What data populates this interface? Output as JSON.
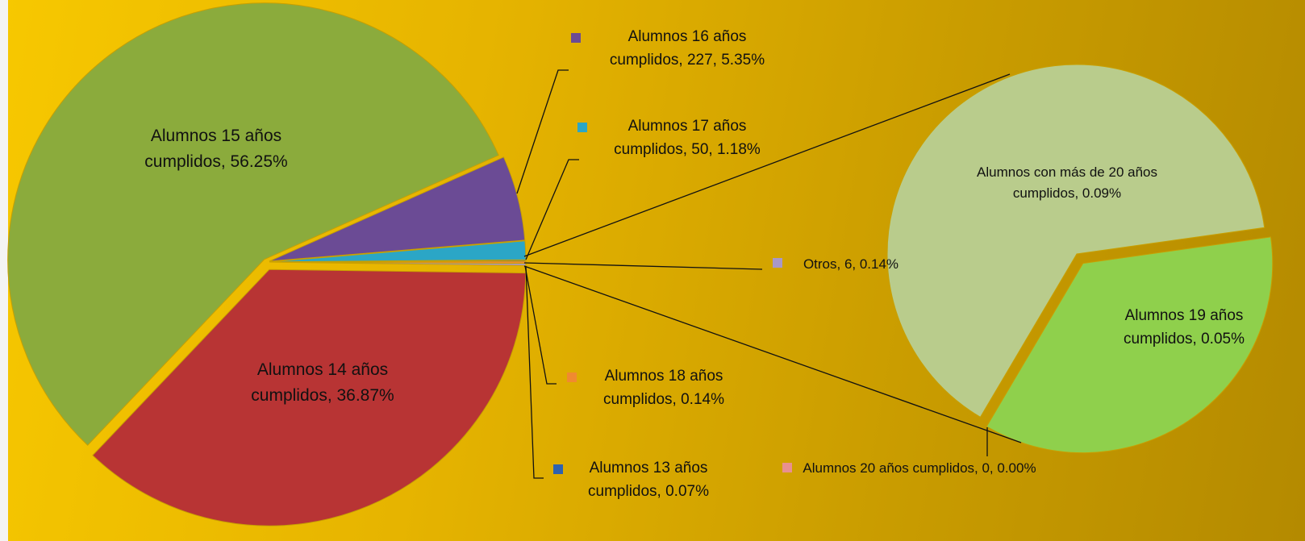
{
  "chart_data": {
    "type": "pie-of-pie",
    "values": [
      36.87,
      56.25,
      5.35,
      1.18,
      0.07,
      0.14,
      0.0,
      0.14
    ],
    "value_labels": [
      "Alumnos 14 años cumplidos,  36.87%",
      "Alumnos 15 años cumplidos, 56.25%",
      "Alumnos 16 años cumplidos, 227, 5.35%",
      "Alumnos 17 años cumplidos, 50, 1.18%",
      "Alumnos 13 años cumplidos, 0.07%",
      "Alumnos 18 años cumplidos,  0.14%",
      "Alumnos 20 años cumplidos, 0, 0.00%",
      "Otros, 6, 0.14%"
    ],
    "colors": [
      "#b83434",
      "#8bab3c",
      "#6b4b95",
      "#2ba6c6",
      "#2e62b0",
      "#f08a30",
      "#e89090",
      "#a898c8"
    ],
    "secondary": {
      "values": [
        0.09,
        0.05
      ],
      "value_labels": [
        "Alumnos con más de 20 años cumplidos, 0.09%",
        "Alumnos 19 años cumplidos, 0.05%"
      ],
      "colors": [
        "#b9cc8c",
        "#8fd04c"
      ]
    }
  }
}
